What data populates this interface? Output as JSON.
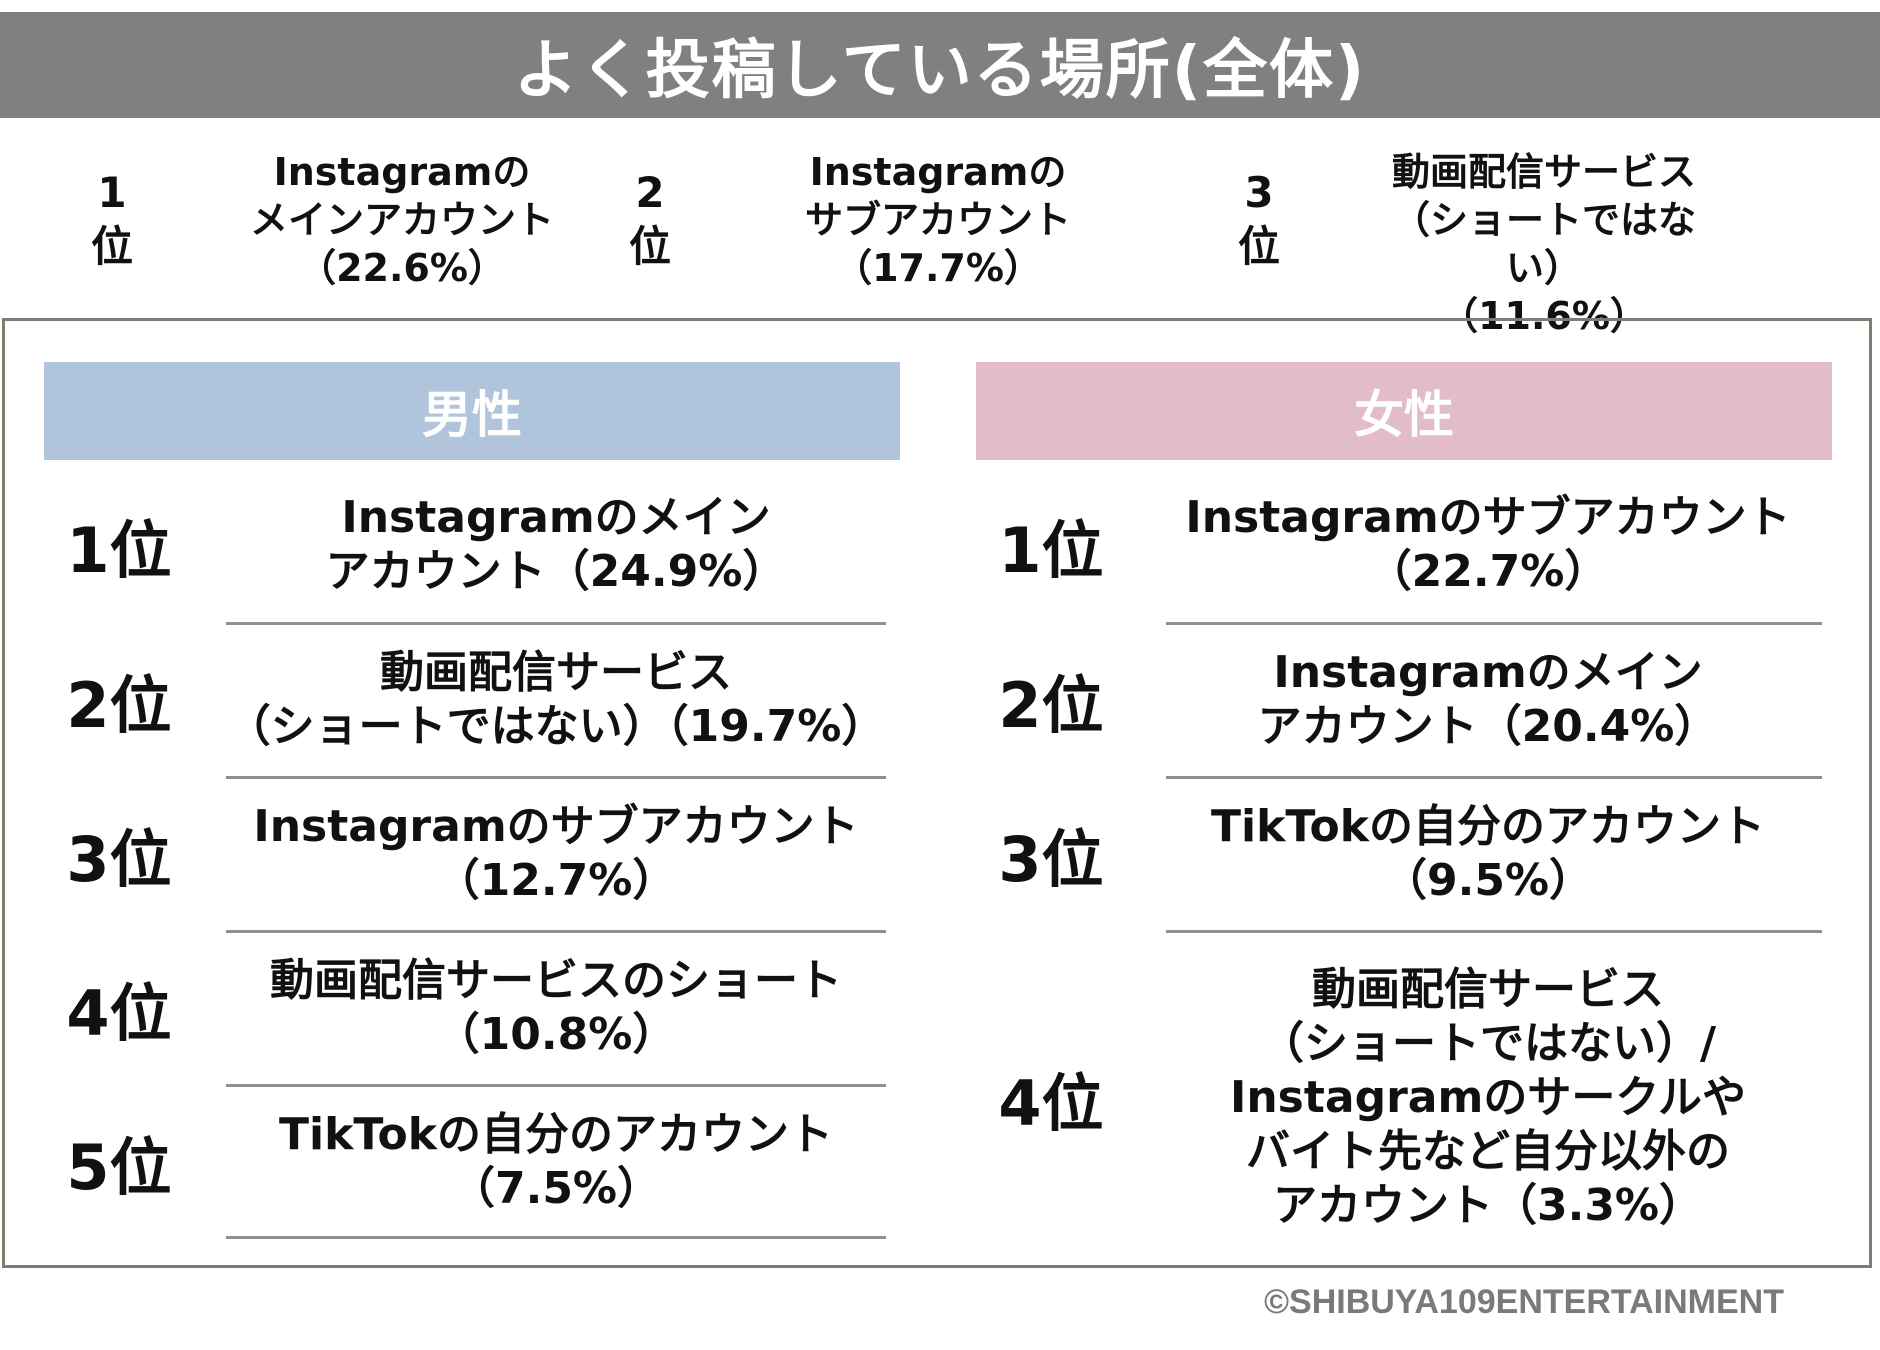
{
  "title": "よく投稿している場所(全体)",
  "overall": [
    {
      "rank": "1\n位",
      "text": "Instagramの\nメインアカウント\n（22.6%）"
    },
    {
      "rank": "2\n位",
      "text": "Instagramの\nサブアカウント\n（17.7%）"
    },
    {
      "rank": "3\n位",
      "text": "動画配信サービス\n（ショートではない）\n（11.6%）"
    }
  ],
  "male": {
    "header": "男性",
    "header_color": "#b0c4dc",
    "items": [
      {
        "rank": "1位",
        "text": "Instagramのメイン\nアカウント（24.9%）"
      },
      {
        "rank": "2位",
        "text": "動画配信サービス\n（ショートではない）（19.7%）"
      },
      {
        "rank": "3位",
        "text": "Instagramのサブアカウント\n（12.7%）"
      },
      {
        "rank": "4位",
        "text": "動画配信サービスのショート\n（10.8%）"
      },
      {
        "rank": "5位",
        "text": "TikTokの自分のアカウント\n（7.5%）"
      }
    ]
  },
  "female": {
    "header": "女性",
    "header_color": "#e2bcc8",
    "items": [
      {
        "rank": "1位",
        "text": "Instagramのサブアカウント\n（22.7%）"
      },
      {
        "rank": "2位",
        "text": "Instagramのメイン\nアカウント（20.4%）"
      },
      {
        "rank": "3位",
        "text": "TikTokの自分のアカウント\n（9.5%）"
      },
      {
        "rank": "4位",
        "text": "動画配信サービス\n（ショートではない）/\nInstagramのサークルや\nバイト先など自分以外の\nアカウント（3.3%）"
      }
    ]
  },
  "copyright": "©SHIBUYA109ENTERTAINMENT"
}
